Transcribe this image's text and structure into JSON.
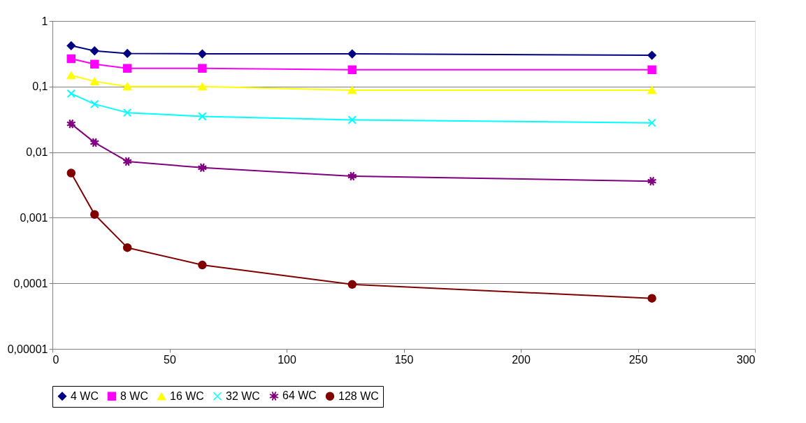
{
  "chart_data": {
    "type": "line",
    "log": "y",
    "grid": "y",
    "legend": "bottom",
    "xlim": [
      0,
      300
    ],
    "xticks": [
      0,
      50,
      100,
      150,
      200,
      250,
      300
    ],
    "ylim": [
      1e-05,
      1
    ],
    "yticks": [
      {
        "value": 1e-05,
        "label": "0,00001"
      },
      {
        "value": 0.0001,
        "label": "0,0001"
      },
      {
        "value": 0.001,
        "label": "0,001"
      },
      {
        "value": 0.01,
        "label": "0,01"
      },
      {
        "value": 0.1,
        "label": "0,1"
      },
      1
    ],
    "x": [
      8,
      18,
      32,
      64,
      128,
      256
    ],
    "series": [
      {
        "name": "4 WC",
        "color": "#000080",
        "marker": "diamond",
        "values": [
          0.42,
          0.35,
          0.32,
          0.315,
          0.315,
          0.3
        ]
      },
      {
        "name": "8 WC",
        "color": "#ff00ff",
        "marker": "square",
        "values": [
          0.265,
          0.22,
          0.19,
          0.19,
          0.18,
          0.18
        ]
      },
      {
        "name": "16 WC",
        "color": "#ffff00",
        "marker": "triangle",
        "values": [
          0.148,
          0.12,
          0.1,
          0.1,
          0.088,
          0.088
        ]
      },
      {
        "name": "32 WC",
        "color": "#00ffff",
        "marker": "cross",
        "values": [
          0.078,
          0.054,
          0.04,
          0.035,
          0.031,
          0.028
        ]
      },
      {
        "name": "64 WC",
        "color": "#800080",
        "marker": "star",
        "values": [
          0.027,
          0.014,
          0.0072,
          0.0058,
          0.0043,
          0.0036
        ]
      },
      {
        "name": "128 WC",
        "color": "#800000",
        "marker": "circle",
        "values": [
          0.0048,
          0.00112,
          0.00035,
          0.00019,
          9.6e-05,
          5.9e-05
        ]
      }
    ]
  }
}
